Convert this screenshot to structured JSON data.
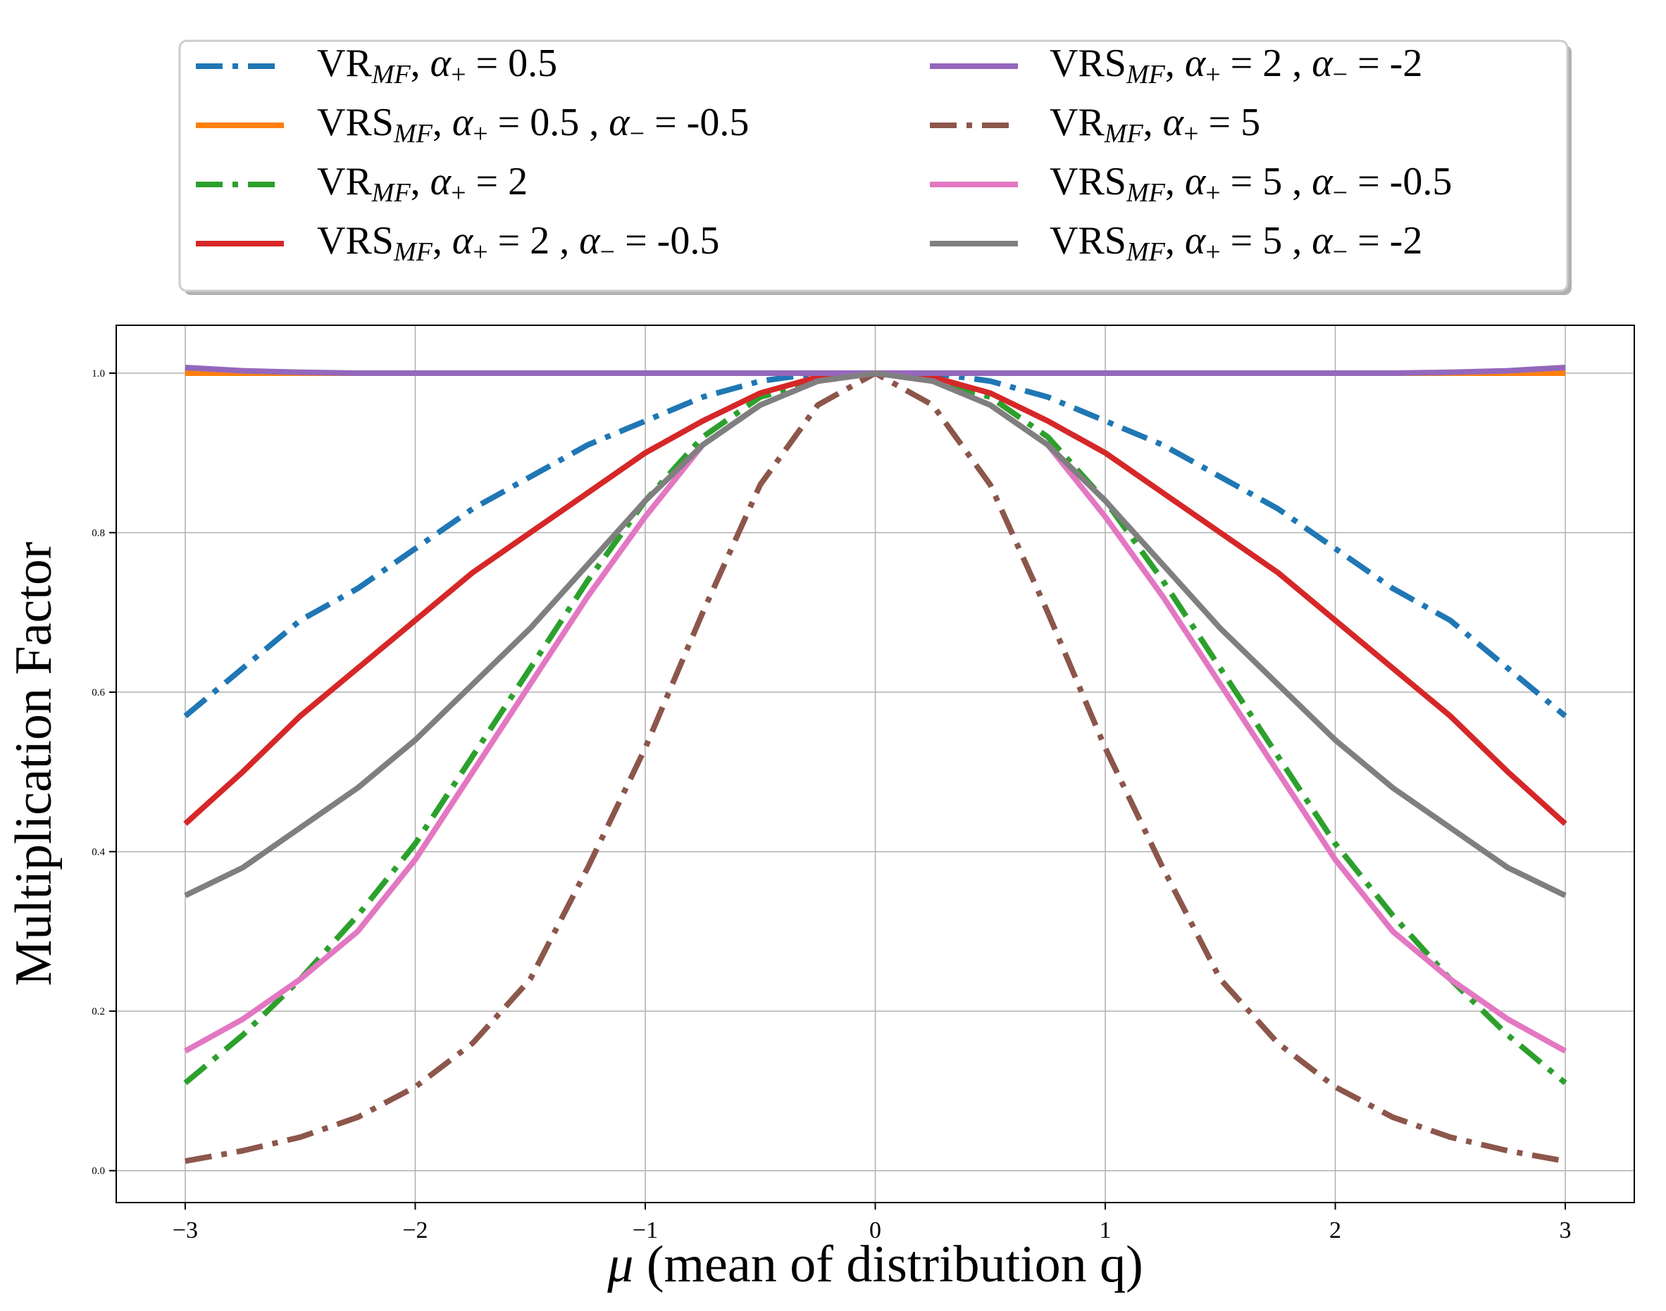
{
  "chart_data": {
    "type": "line",
    "title": "",
    "xlabel": "μ (mean of distribution q)",
    "ylabel": "Multiplication Factor",
    "xlim": [
      -3.3,
      3.3
    ],
    "ylim": [
      -0.04,
      1.06
    ],
    "grid": true,
    "legend_position": "top",
    "x_ticks": [
      {
        "value": -3,
        "label": "−3"
      },
      {
        "value": -2,
        "label": "−2"
      },
      {
        "value": -1,
        "label": "−1"
      },
      {
        "value": 0,
        "label": "0"
      },
      {
        "value": 1,
        "label": "1"
      },
      {
        "value": 2,
        "label": "2"
      },
      {
        "value": 3,
        "label": "3"
      }
    ],
    "y_ticks": [
      {
        "value": 0.0,
        "label": "0.0"
      },
      {
        "value": 0.2,
        "label": "0.2"
      },
      {
        "value": 0.4,
        "label": "0.4"
      },
      {
        "value": 0.6,
        "label": "0.6"
      },
      {
        "value": 0.8,
        "label": "0.8"
      },
      {
        "value": 1.0,
        "label": "1.0"
      }
    ],
    "x": [
      -3.0,
      -2.75,
      -2.5,
      -2.25,
      -2.0,
      -1.75,
      -1.5,
      -1.25,
      -1.0,
      -0.75,
      -0.5,
      -0.25,
      0.0,
      0.25,
      0.5,
      0.75,
      1.0,
      1.25,
      1.5,
      1.75,
      2.0,
      2.25,
      2.5,
      2.75,
      3.0
    ],
    "series": [
      {
        "name": "VR_MF, α+ = 0.5",
        "method": "VR",
        "sub": "MF",
        "alpha_plus": "0.5",
        "alpha_minus": null,
        "color": "#1f77b4",
        "style": "dashdot",
        "values": [
          0.57,
          0.63,
          0.69,
          0.73,
          0.78,
          0.83,
          0.87,
          0.91,
          0.94,
          0.97,
          0.99,
          1.0,
          1.0,
          1.0,
          0.99,
          0.97,
          0.94,
          0.91,
          0.87,
          0.83,
          0.78,
          0.73,
          0.69,
          0.63,
          0.57
        ]
      },
      {
        "name": "VRS_MF, α+ = 0.5 , α− = -0.5",
        "method": "VRS",
        "sub": "MF",
        "alpha_plus": "0.5",
        "alpha_minus": "-0.5",
        "color": "#ff7f0e",
        "style": "solid",
        "values": [
          1.0,
          1.0,
          1.0,
          1.0,
          1.0,
          1.0,
          1.0,
          1.0,
          1.0,
          1.0,
          1.0,
          1.0,
          1.0,
          1.0,
          1.0,
          1.0,
          1.0,
          1.0,
          1.0,
          1.0,
          1.0,
          1.0,
          1.0,
          1.0,
          1.0
        ]
      },
      {
        "name": "VR_MF, α+ = 2",
        "method": "VR",
        "sub": "MF",
        "alpha_plus": "2",
        "alpha_minus": null,
        "color": "#2ca02c",
        "style": "dashdot",
        "values": [
          0.11,
          0.17,
          0.24,
          0.32,
          0.41,
          0.52,
          0.63,
          0.74,
          0.84,
          0.92,
          0.97,
          0.99,
          1.0,
          0.99,
          0.97,
          0.92,
          0.84,
          0.74,
          0.63,
          0.52,
          0.41,
          0.32,
          0.24,
          0.17,
          0.11
        ]
      },
      {
        "name": "VRS_MF, α+ = 2 , α− = -0.5",
        "method": "VRS",
        "sub": "MF",
        "alpha_plus": "2",
        "alpha_minus": "-0.5",
        "color": "#d62728",
        "style": "solid",
        "values": [
          0.435,
          0.5,
          0.57,
          0.63,
          0.69,
          0.75,
          0.8,
          0.85,
          0.9,
          0.94,
          0.975,
          0.995,
          1.0,
          0.995,
          0.975,
          0.94,
          0.9,
          0.85,
          0.8,
          0.75,
          0.69,
          0.63,
          0.57,
          0.5,
          0.435
        ]
      },
      {
        "name": "VRS_MF, α+ = 2 , α− = -2",
        "method": "VRS",
        "sub": "MF",
        "alpha_plus": "2",
        "alpha_minus": "-2",
        "color": "#9467bd",
        "style": "solid",
        "values": [
          1.007,
          1.003,
          1.001,
          1.0,
          1.0,
          1.0,
          1.0,
          1.0,
          1.0,
          1.0,
          1.0,
          1.0,
          1.0,
          1.0,
          1.0,
          1.0,
          1.0,
          1.0,
          1.0,
          1.0,
          1.0,
          1.0,
          1.001,
          1.003,
          1.007
        ]
      },
      {
        "name": "VR_MF, α+ = 5",
        "method": "VR",
        "sub": "MF",
        "alpha_plus": "5",
        "alpha_minus": null,
        "color": "#8c564b",
        "style": "dashdot",
        "values": [
          0.012,
          0.025,
          0.042,
          0.067,
          0.105,
          0.16,
          0.24,
          0.38,
          0.53,
          0.7,
          0.86,
          0.96,
          1.0,
          0.96,
          0.86,
          0.7,
          0.53,
          0.38,
          0.24,
          0.16,
          0.105,
          0.067,
          0.042,
          0.025,
          0.012
        ]
      },
      {
        "name": "VRS_MF, α+ = 5 , α− = -0.5",
        "method": "VRS",
        "sub": "MF",
        "alpha_plus": "5",
        "alpha_minus": "-0.5",
        "color": "#e377c2",
        "style": "solid",
        "values": [
          0.15,
          0.19,
          0.24,
          0.3,
          0.39,
          0.5,
          0.61,
          0.72,
          0.82,
          0.91,
          0.96,
          0.99,
          1.0,
          0.99,
          0.96,
          0.91,
          0.82,
          0.72,
          0.61,
          0.5,
          0.39,
          0.3,
          0.24,
          0.19,
          0.15
        ]
      },
      {
        "name": "VRS_MF, α+ = 5 , α− = -2",
        "method": "VRS",
        "sub": "MF",
        "alpha_plus": "5",
        "alpha_minus": "-2",
        "color": "#7f7f7f",
        "style": "solid",
        "values": [
          0.345,
          0.38,
          0.43,
          0.48,
          0.54,
          0.61,
          0.68,
          0.76,
          0.84,
          0.91,
          0.96,
          0.99,
          1.0,
          0.99,
          0.96,
          0.91,
          0.84,
          0.76,
          0.68,
          0.61,
          0.54,
          0.48,
          0.43,
          0.38,
          0.345
        ]
      }
    ]
  }
}
